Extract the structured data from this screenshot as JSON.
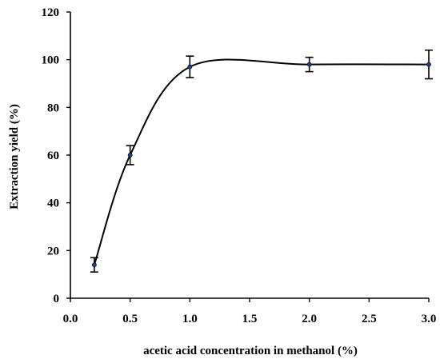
{
  "chart_data": {
    "type": "line",
    "title": "",
    "xlabel": "acetic acid concentration in methanol (%)",
    "ylabel": "Extraction yield  (%)",
    "xlim": [
      0.0,
      3.0
    ],
    "ylim": [
      0,
      120
    ],
    "x_ticks": [
      "0.0",
      "0.5",
      "1.0",
      "1.5",
      "2.0",
      "2.5",
      "3.0"
    ],
    "y_ticks": [
      "0",
      "20",
      "40",
      "60",
      "80",
      "100",
      "120"
    ],
    "grid": false,
    "legend": "none",
    "series": [
      {
        "x": [
          0.2,
          0.5,
          1.0,
          2.0,
          3.0
        ],
        "y": [
          14,
          60,
          97,
          98,
          98
        ],
        "error": [
          3,
          4,
          4.5,
          3,
          6
        ]
      }
    ],
    "colors": {
      "line": "#000000",
      "marker": "#1f3f8f",
      "axis": "#000000"
    }
  }
}
